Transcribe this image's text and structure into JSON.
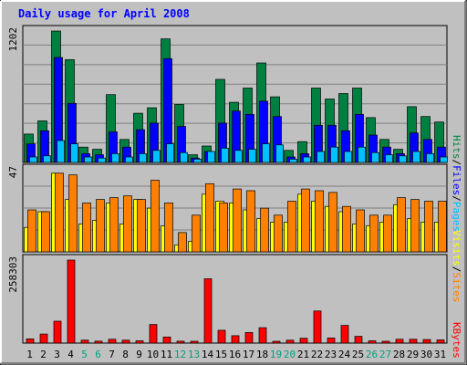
{
  "chart_data": {
    "type": "bar",
    "title": "Daily usage for April 2008",
    "days": [
      "1",
      "2",
      "3",
      "4",
      "5",
      "6",
      "7",
      "8",
      "9",
      "10",
      "11",
      "12",
      "13",
      "14",
      "15",
      "16",
      "17",
      "18",
      "19",
      "20",
      "21",
      "22",
      "23",
      "24",
      "25",
      "26",
      "27",
      "28",
      "29",
      "30",
      "31"
    ],
    "weekend_days": [
      "5",
      "6",
      "12",
      "13",
      "19",
      "20",
      "26",
      "27"
    ],
    "panels": [
      {
        "id": "hits",
        "max_label": "1202",
        "max": 1202,
        "series": [
          {
            "name": "Hits",
            "color": "#008040",
            "values": [
              260,
              380,
              1202,
              940,
              140,
              120,
              620,
              210,
              450,
              500,
              1130,
              530,
              70,
              150,
              760,
              550,
              680,
              910,
              600,
              110,
              190,
              680,
              580,
              630,
              680,
              410,
              210,
              120,
              510,
              420,
              370
            ]
          },
          {
            "name": "Files",
            "color": "#0000ff",
            "values": [
              170,
              290,
              960,
              540,
              80,
              70,
              280,
              140,
              300,
              360,
              950,
              330,
              40,
              100,
              360,
              470,
              440,
              560,
              420,
              50,
              80,
              340,
              340,
              290,
              440,
              250,
              140,
              80,
              270,
              210,
              140
            ]
          },
          {
            "name": "Pages",
            "color": "#00c0ff",
            "values": [
              50,
              60,
              200,
              170,
              50,
              40,
              80,
              50,
              80,
              110,
              170,
              90,
              30,
              100,
              130,
              110,
              120,
              170,
              160,
              30,
              50,
              100,
              140,
              100,
              140,
              90,
              70,
              60,
              100,
              80,
              50
            ]
          }
        ],
        "labels": [
          "Pages",
          "Files",
          "Hits"
        ]
      },
      {
        "id": "visits",
        "max_label": "47",
        "max": 47,
        "series": [
          {
            "name": "Visits",
            "color": "#ffff00",
            "values": [
              14,
              23,
              45,
              30,
              16,
              18,
              28,
              16,
              30,
              25,
              15,
              4,
              6,
              33,
              29,
              28,
              24,
              19,
              17,
              17,
              33,
              29,
              26,
              23,
              16,
              15,
              17,
              27,
              19,
              17,
              17
            ]
          },
          {
            "name": "Sites",
            "color": "#ff8000",
            "values": [
              24,
              23,
              45,
              44,
              28,
              30,
              31,
              32,
              30,
              41,
              28,
              11,
              21,
              39,
              28,
              36,
              35,
              25,
              21,
              29,
              36,
              35,
              34,
              26,
              24,
              21,
              21,
              31,
              30,
              29,
              29
            ]
          }
        ],
        "labels": [
          "Sites",
          "Visits"
        ]
      },
      {
        "id": "kbytes",
        "max_label": "258303",
        "max": 258303,
        "series": [
          {
            "name": "KBytes",
            "color": "#ff0000",
            "values": [
              13000,
              28000,
              68000,
              258303,
              9000,
              6000,
              12000,
              9000,
              7000,
              58000,
              19000,
              6000,
              4000,
              200000,
              40000,
              23000,
              33000,
              48000,
              3000,
              9000,
              15000,
              100000,
              16000,
              55000,
              21000,
              7000,
              4000,
              12000,
              12000,
              11000,
              10000
            ]
          }
        ],
        "labels": [
          "KBytes"
        ]
      }
    ]
  },
  "colors": {
    "frame_bg": "#c0c0c0",
    "plot_bg": "#c0c0c0",
    "grid": "#808080",
    "title": "#0000ff",
    "axis_text": "#000000",
    "weekend_text": "#00a080",
    "separator": "#000000"
  }
}
